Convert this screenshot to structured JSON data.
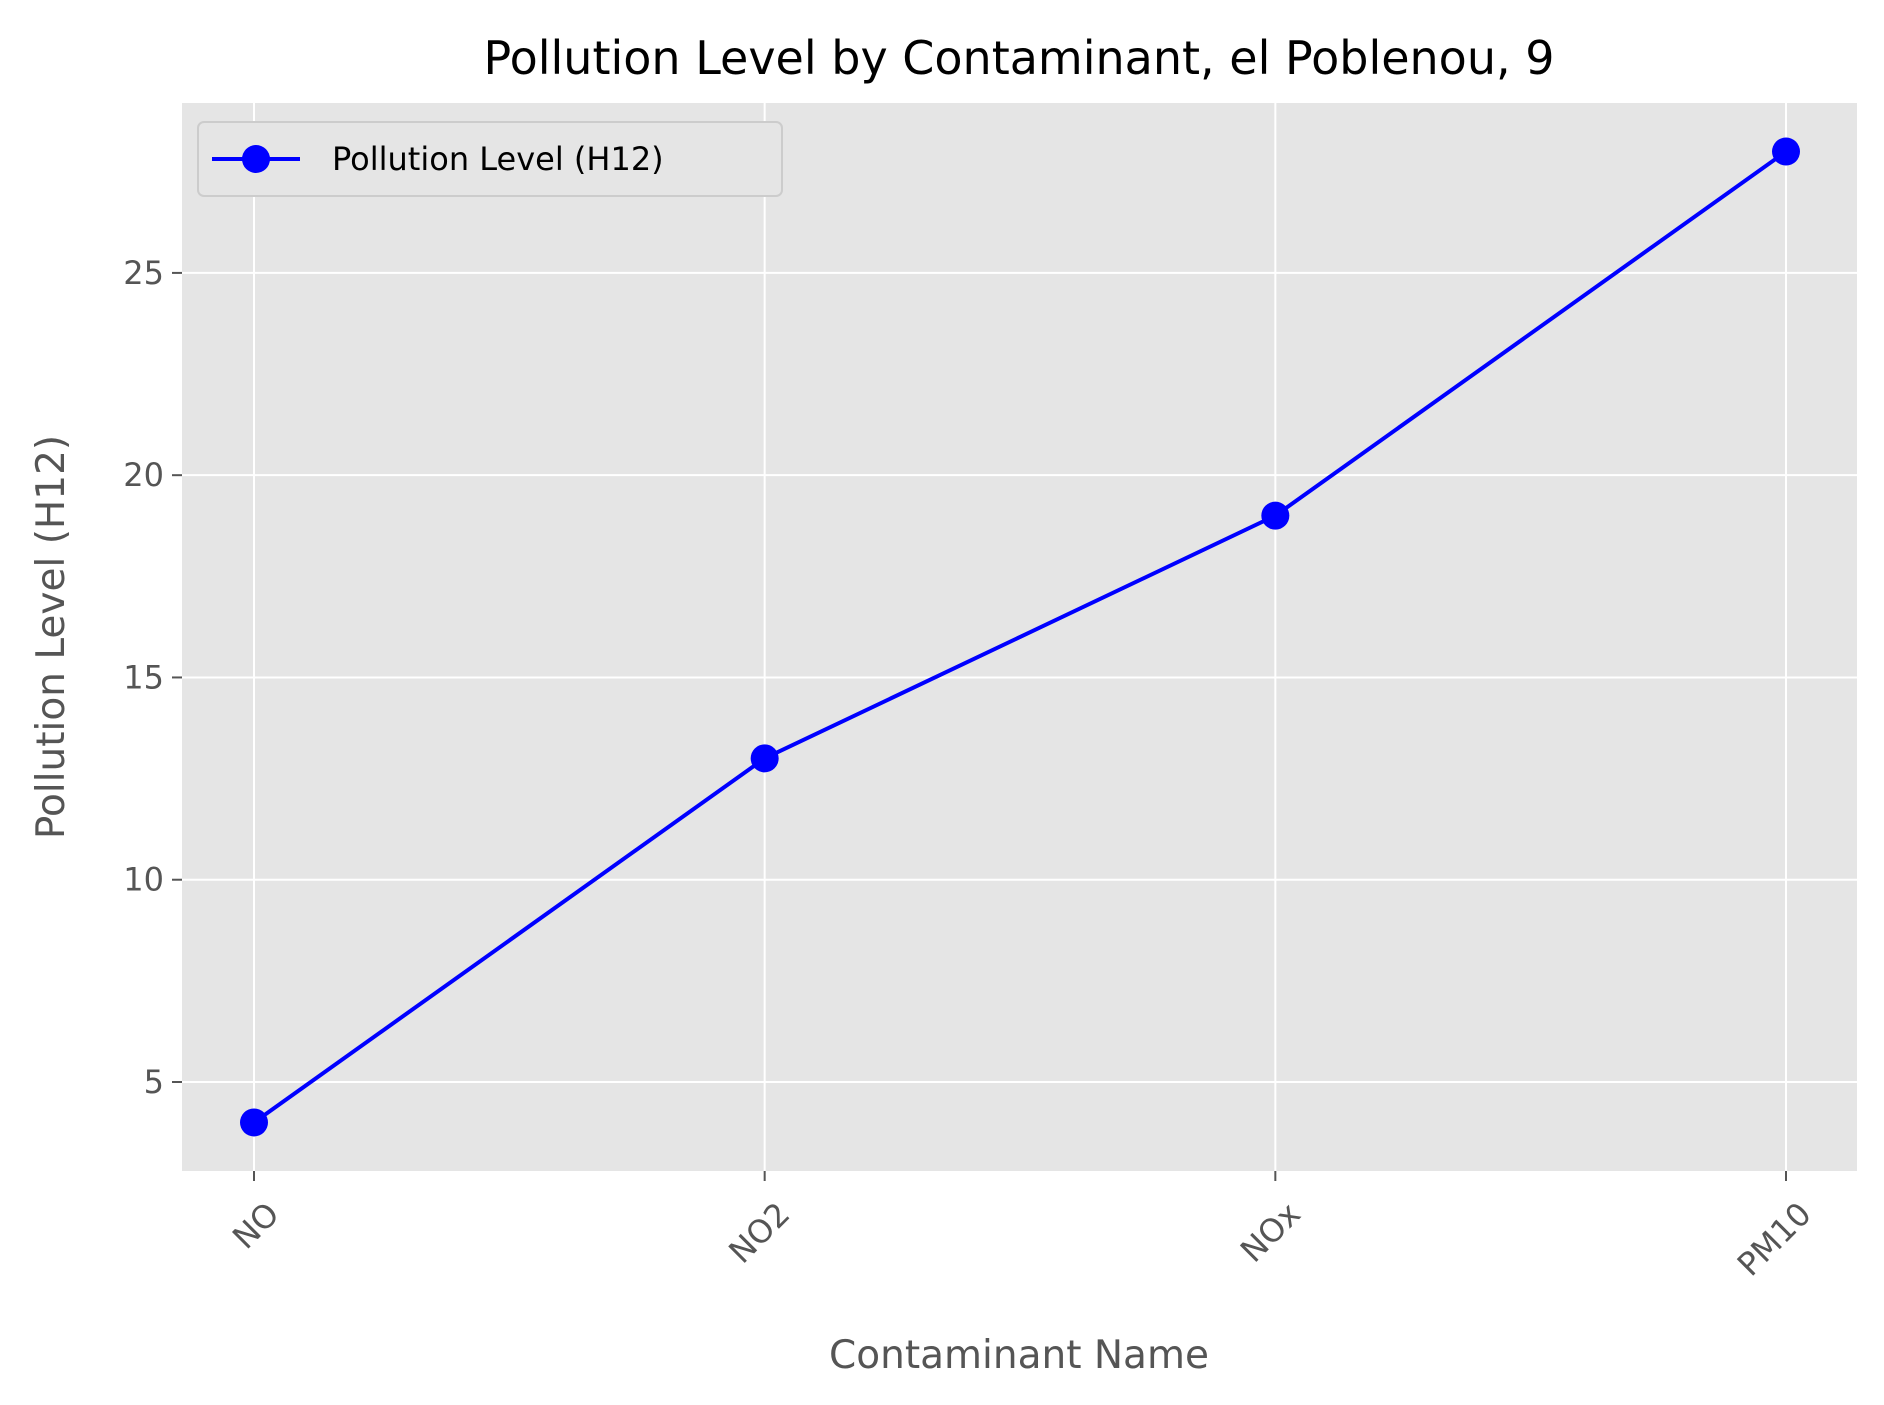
{
  "chart_data": {
    "type": "line",
    "title": "Pollution Level by Contaminant, el Poblenou, 9",
    "xlabel": "Contaminant Name",
    "ylabel": "Pollution Level (H12)",
    "categories": [
      "NO",
      "NO2",
      "NOx",
      "PM10"
    ],
    "series": [
      {
        "name": "Pollution Level (H12)",
        "values": [
          4,
          13,
          19,
          28
        ],
        "color": "#0000ff",
        "marker": "circle"
      }
    ],
    "ylim": [
      2.8,
      29.2
    ],
    "yticks": [
      5,
      10,
      15,
      20,
      25
    ],
    "xtick_rotation": 45,
    "grid": true,
    "legend_position": "upper-left",
    "style": {
      "plot_background": "#e5e5e5",
      "grid_color": "#ffffff",
      "text_color": "#555555"
    }
  }
}
